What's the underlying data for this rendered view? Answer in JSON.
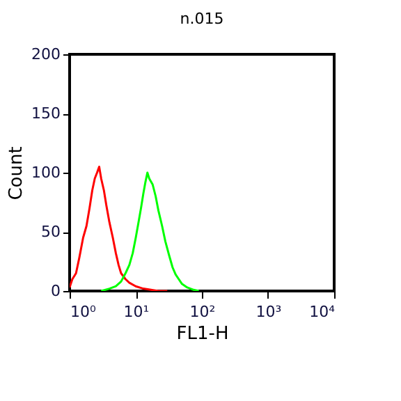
{
  "chart_data": {
    "type": "line",
    "title": "n.015",
    "xlabel": "FL1-H",
    "ylabel": "Count",
    "log": "x",
    "xlim": [
      1,
      10000
    ],
    "ylim": [
      0,
      200
    ],
    "xticks": [
      {
        "value": 1,
        "label": "10⁰"
      },
      {
        "value": 10,
        "label": "10¹"
      },
      {
        "value": 100,
        "label": "10²"
      },
      {
        "value": 1000,
        "label": "10³"
      },
      {
        "value": 10000,
        "label": "10⁴"
      }
    ],
    "yticks": [
      0,
      50,
      100,
      150,
      200
    ],
    "grid": false,
    "legend": false,
    "marker": "none",
    "line_style": "solid",
    "series": [
      {
        "color": "#ff0000",
        "x": [
          1,
          1.1,
          1.25,
          1.4,
          1.6,
          1.8,
          2,
          2.2,
          2.4,
          2.6,
          2.8,
          3,
          3.3,
          3.6,
          4,
          4.5,
          5,
          5.5,
          6,
          7,
          8,
          10,
          13,
          17,
          22,
          30
        ],
        "values": [
          3,
          10,
          15,
          28,
          45,
          55,
          70,
          85,
          95,
          100,
          105,
          95,
          85,
          72,
          58,
          45,
          32,
          22,
          15,
          10,
          7,
          4,
          2,
          1,
          0,
          0
        ]
      },
      {
        "color": "#00ff00",
        "x": [
          3,
          4,
          5,
          6,
          7,
          8,
          9,
          10,
          11,
          12,
          13,
          14,
          15,
          16,
          18,
          20,
          22,
          25,
          28,
          32,
          36,
          40,
          50,
          60,
          75,
          90
        ],
        "values": [
          0,
          2,
          4,
          8,
          15,
          22,
          32,
          45,
          58,
          70,
          82,
          92,
          100,
          95,
          90,
          80,
          68,
          55,
          42,
          30,
          20,
          14,
          6,
          3,
          1,
          0
        ]
      }
    ]
  }
}
